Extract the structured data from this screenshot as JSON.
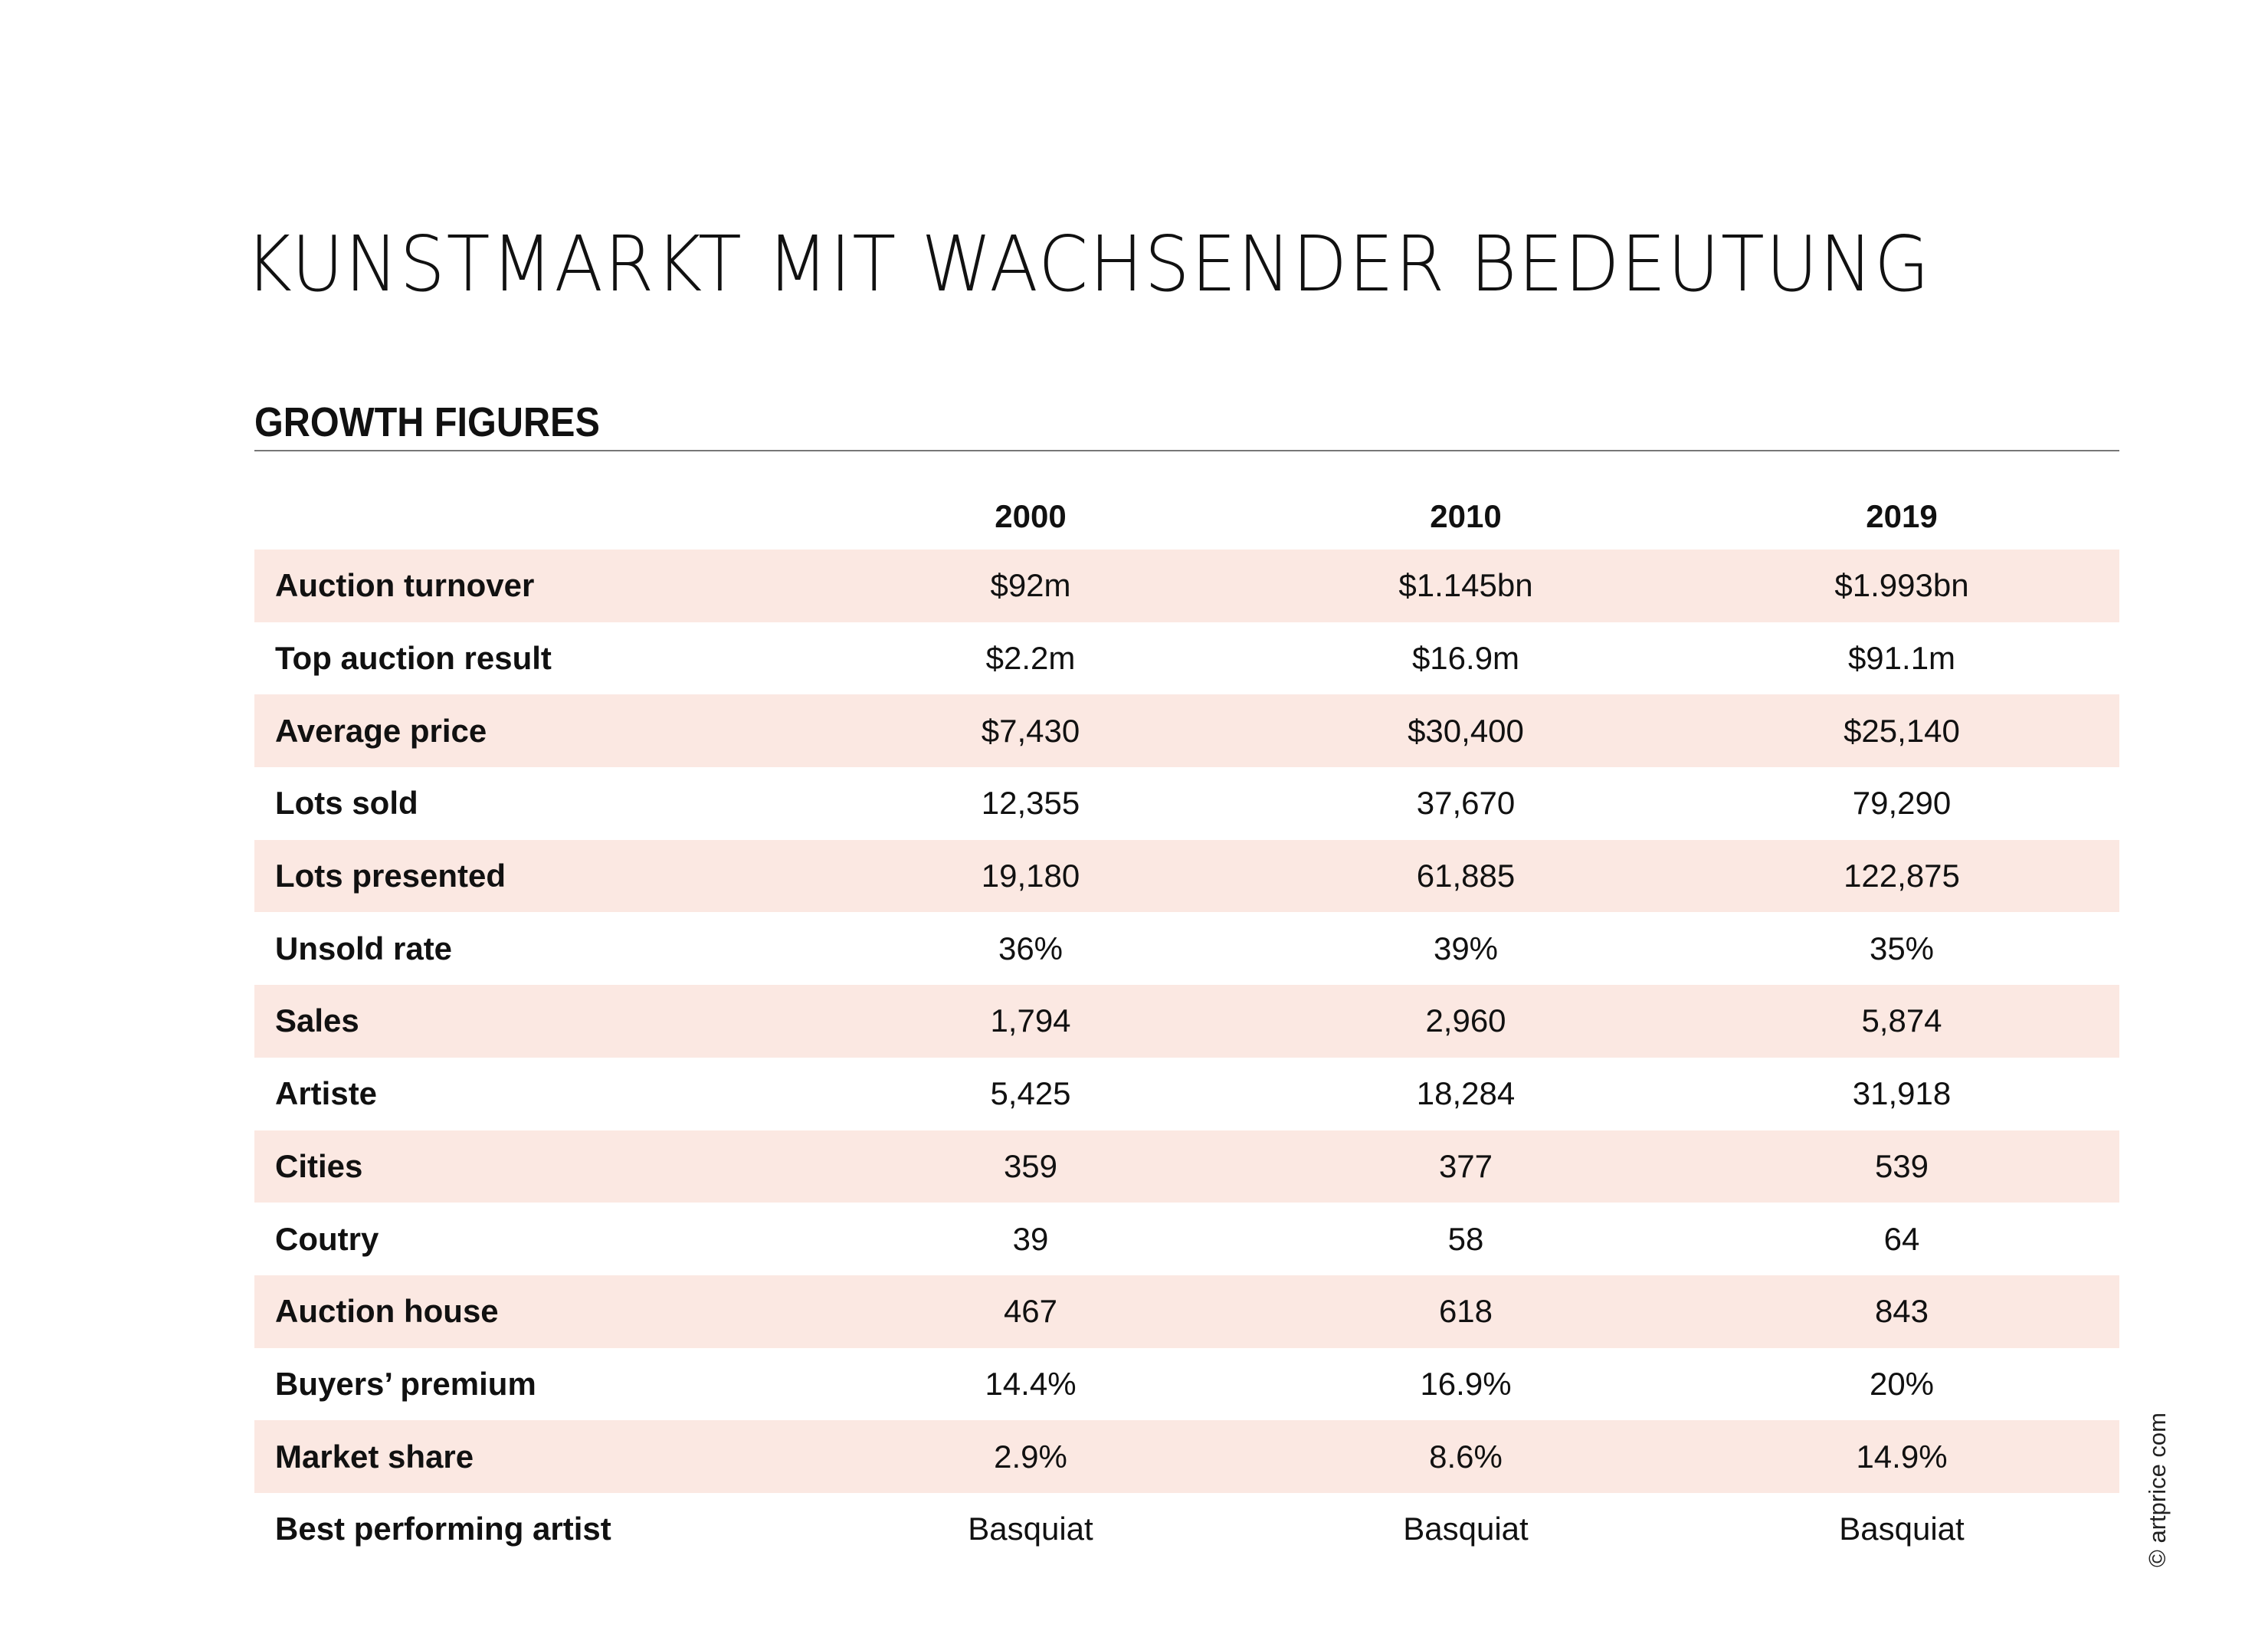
{
  "title": "KUNSTMARKT MIT WACHSENDER BEDEUTUNG",
  "subtitle": "GROWTH FIGURES",
  "columns": [
    "2000",
    "2010",
    "2019"
  ],
  "rows": [
    {
      "label": "Auction turnover",
      "values": [
        "$92m",
        "$1.145bn",
        "$1.993bn"
      ]
    },
    {
      "label": "Top auction result",
      "values": [
        "$2.2m",
        "$16.9m",
        "$91.1m"
      ]
    },
    {
      "label": "Average price",
      "values": [
        "$7,430",
        "$30,400",
        "$25,140"
      ]
    },
    {
      "label": "Lots sold",
      "values": [
        "12,355",
        "37,670",
        "79,290"
      ]
    },
    {
      "label": "Lots presented",
      "values": [
        "19,180",
        "61,885",
        "122,875"
      ]
    },
    {
      "label": "Unsold rate",
      "values": [
        "36%",
        "39%",
        "35%"
      ]
    },
    {
      "label": "Sales",
      "values": [
        "1,794",
        "2,960",
        "5,874"
      ]
    },
    {
      "label": "Artiste",
      "values": [
        "5,425",
        "18,284",
        "31,918"
      ]
    },
    {
      "label": "Cities",
      "values": [
        "359",
        "377",
        "539"
      ]
    },
    {
      "label": "Coutry",
      "values": [
        "39",
        "58",
        "64"
      ]
    },
    {
      "label": "Auction house",
      "values": [
        "467",
        "618",
        "843"
      ]
    },
    {
      "label": "Buyers’ premium",
      "values": [
        "14.4%",
        "16.9%",
        "20%"
      ]
    },
    {
      "label": "Market share",
      "values": [
        "2.9%",
        "8.6%",
        "14.9%"
      ]
    },
    {
      "label": "Best performing artist",
      "values": [
        "Basquiat",
        "Basquiat",
        "Basquiat"
      ]
    }
  ],
  "copyright": "© artprice com",
  "colors": {
    "band": "#fbe8e2"
  }
}
